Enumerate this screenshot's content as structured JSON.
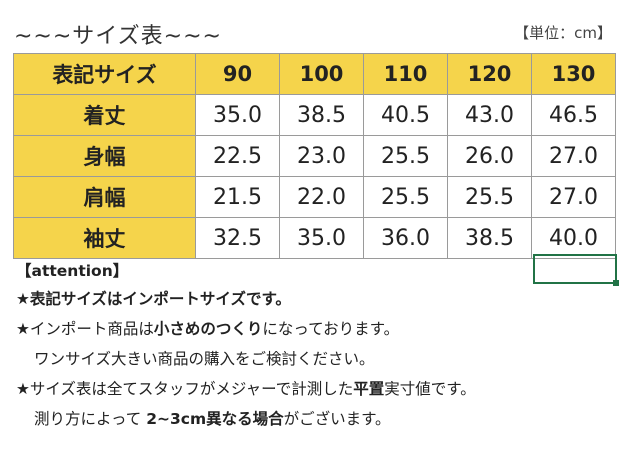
{
  "header": {
    "title": "~~~サイズ表~~~",
    "unit": "【単位：cm】"
  },
  "table": {
    "corner": "表記サイズ",
    "columns": [
      "90",
      "100",
      "110",
      "120",
      "130"
    ],
    "rows": [
      {
        "label": "着丈",
        "values": [
          "35.0",
          "38.5",
          "40.5",
          "43.0",
          "46.5"
        ]
      },
      {
        "label": "身幅",
        "values": [
          "22.5",
          "23.0",
          "25.5",
          "26.0",
          "27.0"
        ]
      },
      {
        "label": "肩幅",
        "values": [
          "21.5",
          "22.0",
          "25.5",
          "25.5",
          "27.0"
        ]
      },
      {
        "label": "袖丈",
        "values": [
          "32.5",
          "35.0",
          "36.0",
          "38.5",
          "40.0"
        ]
      }
    ]
  },
  "notes": {
    "attention": "【attention】",
    "line1": "★表記サイズはインポートサイズです。",
    "line2_a": "★インポート商品は",
    "line2_b": "小さめのつくり",
    "line2_c": "になっております。",
    "line3": "ワンサイズ大きい商品の購入をご検討ください。",
    "line4_a": "★サイズ表は全てスタッフがメジャーで計測した",
    "line4_b": "平置",
    "line4_c": "実寸値です。",
    "line5_a": "測り方によって ",
    "line5_b": "2~3cm異なる場合",
    "line5_c": "がございます。"
  },
  "colors": {
    "header_fill": "#f5d44b",
    "selection_border": "#217346"
  }
}
